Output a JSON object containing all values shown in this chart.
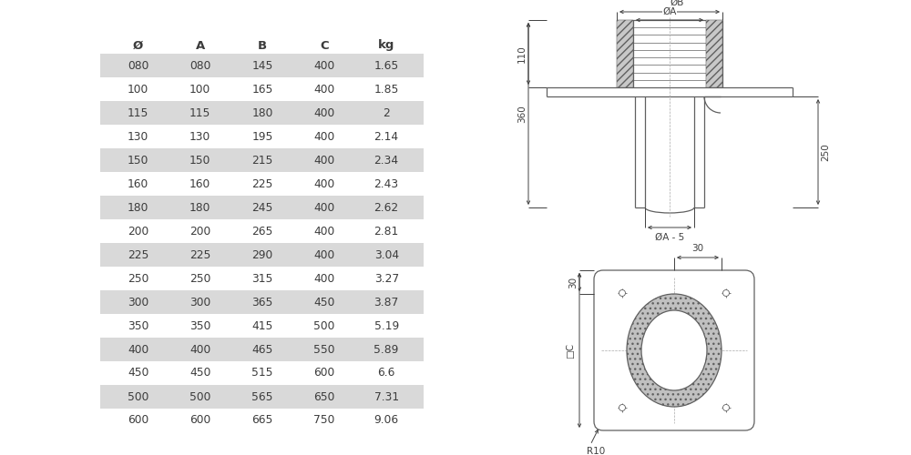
{
  "table_headers": [
    "Ø",
    "A",
    "B",
    "C",
    "kg"
  ],
  "table_data": [
    [
      "080",
      "080",
      "145",
      "400",
      "1.65"
    ],
    [
      "100",
      "100",
      "165",
      "400",
      "1.85"
    ],
    [
      "115",
      "115",
      "180",
      "400",
      "2"
    ],
    [
      "130",
      "130",
      "195",
      "400",
      "2.14"
    ],
    [
      "150",
      "150",
      "215",
      "400",
      "2.34"
    ],
    [
      "160",
      "160",
      "225",
      "400",
      "2.43"
    ],
    [
      "180",
      "180",
      "245",
      "400",
      "2.62"
    ],
    [
      "200",
      "200",
      "265",
      "400",
      "2.81"
    ],
    [
      "225",
      "225",
      "290",
      "400",
      "3.04"
    ],
    [
      "250",
      "250",
      "315",
      "400",
      "3.27"
    ],
    [
      "300",
      "300",
      "365",
      "450",
      "3.87"
    ],
    [
      "350",
      "350",
      "415",
      "500",
      "5.19"
    ],
    [
      "400",
      "400",
      "465",
      "550",
      "5.89"
    ],
    [
      "450",
      "450",
      "515",
      "600",
      "6.6"
    ],
    [
      "500",
      "500",
      "565",
      "650",
      "7.31"
    ],
    [
      "600",
      "600",
      "665",
      "750",
      "9.06"
    ]
  ],
  "shaded_rows": [
    0,
    2,
    4,
    6,
    8,
    10,
    12,
    14
  ],
  "row_bg_shaded": "#d9d9d9",
  "row_bg_white": "#ffffff",
  "text_color": "#3c3c3c",
  "header_color": "#3c3c3c",
  "line_color": "#606060",
  "background": "#ffffff"
}
